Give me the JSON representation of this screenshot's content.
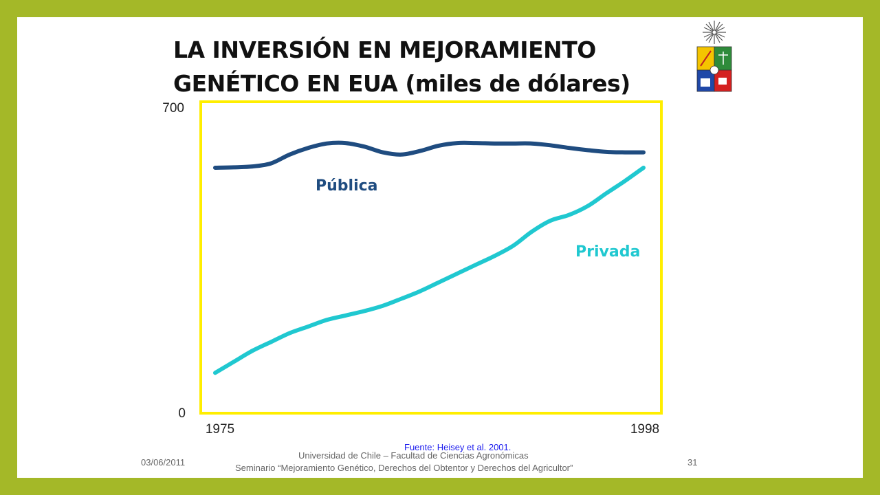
{
  "slide": {
    "title_line1": "LA INVERSIÓN EN MEJORAMIENTO",
    "title_line2": "GENÉTICO EN EUA (miles de dólares)",
    "source": "Fuente: Heisey et al. 2001.",
    "footer_date": "03/06/2011",
    "footer_university": "Universidad de Chile – Facultad de Ciencias Agronómicas",
    "footer_seminar": "Seminario “Mejoramiento Genético, Derechos del Obtentor y Derechos del Agricultor”",
    "page_number": "31"
  },
  "colors": {
    "background": "#a4b828",
    "frame": "#ffee00",
    "publica": "#1f4c80",
    "privada": "#20c8d0"
  },
  "chart_data": {
    "type": "line",
    "title": "LA INVERSIÓN EN MEJORAMIENTO GENÉTICO EN EUA (miles de dólares)",
    "xlim": [
      1975,
      1998
    ],
    "ylim": [
      0,
      700
    ],
    "x_ticks": [
      "1975",
      "1998"
    ],
    "y_ticks": [
      "0",
      "700"
    ],
    "grid": false,
    "legend": "inline labels",
    "series": [
      {
        "name": "Pública",
        "color": "#1f4c80",
        "points": [
          [
            1975,
            555
          ],
          [
            1976,
            556
          ],
          [
            1977,
            558
          ],
          [
            1978,
            565
          ],
          [
            1979,
            585
          ],
          [
            1980,
            600
          ],
          [
            1981,
            610
          ],
          [
            1982,
            611
          ],
          [
            1983,
            603
          ],
          [
            1984,
            590
          ],
          [
            1985,
            585
          ],
          [
            1986,
            593
          ],
          [
            1987,
            605
          ],
          [
            1988,
            611
          ],
          [
            1989,
            611
          ],
          [
            1990,
            610
          ],
          [
            1991,
            610
          ],
          [
            1992,
            610
          ],
          [
            1993,
            606
          ],
          [
            1994,
            600
          ],
          [
            1995,
            595
          ],
          [
            1996,
            591
          ],
          [
            1997,
            590
          ],
          [
            1998,
            590
          ]
        ]
      },
      {
        "name": "Privada",
        "color": "#20c8d0",
        "points": [
          [
            1975,
            90
          ],
          [
            1976,
            115
          ],
          [
            1977,
            140
          ],
          [
            1978,
            160
          ],
          [
            1979,
            180
          ],
          [
            1980,
            195
          ],
          [
            1981,
            210
          ],
          [
            1982,
            220
          ],
          [
            1983,
            230
          ],
          [
            1984,
            242
          ],
          [
            1985,
            258
          ],
          [
            1986,
            275
          ],
          [
            1987,
            295
          ],
          [
            1988,
            315
          ],
          [
            1989,
            335
          ],
          [
            1990,
            355
          ],
          [
            1991,
            378
          ],
          [
            1992,
            410
          ],
          [
            1993,
            435
          ],
          [
            1994,
            448
          ],
          [
            1995,
            468
          ],
          [
            1996,
            497
          ],
          [
            1997,
            525
          ],
          [
            1998,
            555
          ]
        ]
      }
    ]
  }
}
